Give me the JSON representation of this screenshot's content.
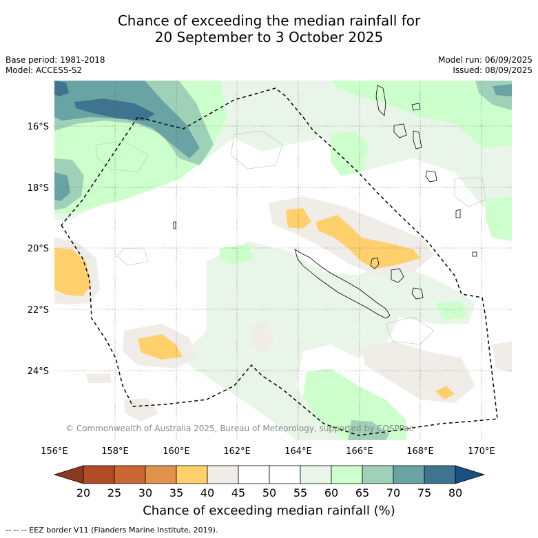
{
  "title_line1": "Chance of exceeding the median rainfall for",
  "title_line2": "20 September to 3 October 2025",
  "base_period": "Base period: 1981-2018",
  "model": "Model: ACCESS-S2",
  "model_run": "Model run: 06/09/2025",
  "issued": "Issued: 08/09/2025",
  "copyright": "© Commonwealth of Australia 2025, Bureau of Meteorology, supported by COSPPac",
  "lon_labels": [
    "156°E",
    "158°E",
    "160°E",
    "162°E",
    "164°E",
    "166°E",
    "168°E",
    "170°E"
  ],
  "lat_labels": [
    "16°S",
    "18°S",
    "20°S",
    "22°S",
    "24°S"
  ],
  "colorbar": {
    "ticks": [
      "20",
      "25",
      "30",
      "35",
      "40",
      "45",
      "50",
      "55",
      "60",
      "65",
      "70",
      "75",
      "80"
    ],
    "colors": [
      "#8b3a1f",
      "#b34a26",
      "#cc6633",
      "#e0914a",
      "#ffd06b",
      "#f0ece8",
      "#ffffff",
      "#ffffff",
      "#e8f5e8",
      "#ccffcc",
      "#9fd1b8",
      "#6aa3a3",
      "#3f7490",
      "#1a4f80"
    ],
    "label": "Chance of exceeding median rainfall (%)"
  },
  "footnote": "-- -- -- EEZ border V11 (Flanders Marine Institute, 2019).",
  "palette": {
    "brown": "#ffd06b",
    "light_brown": "#f0ece8",
    "light_green": "#e8f5e8",
    "green": "#ccffcc",
    "teal_light": "#9fd1b8",
    "teal": "#6aa3a3",
    "blue": "#3f7490"
  }
}
